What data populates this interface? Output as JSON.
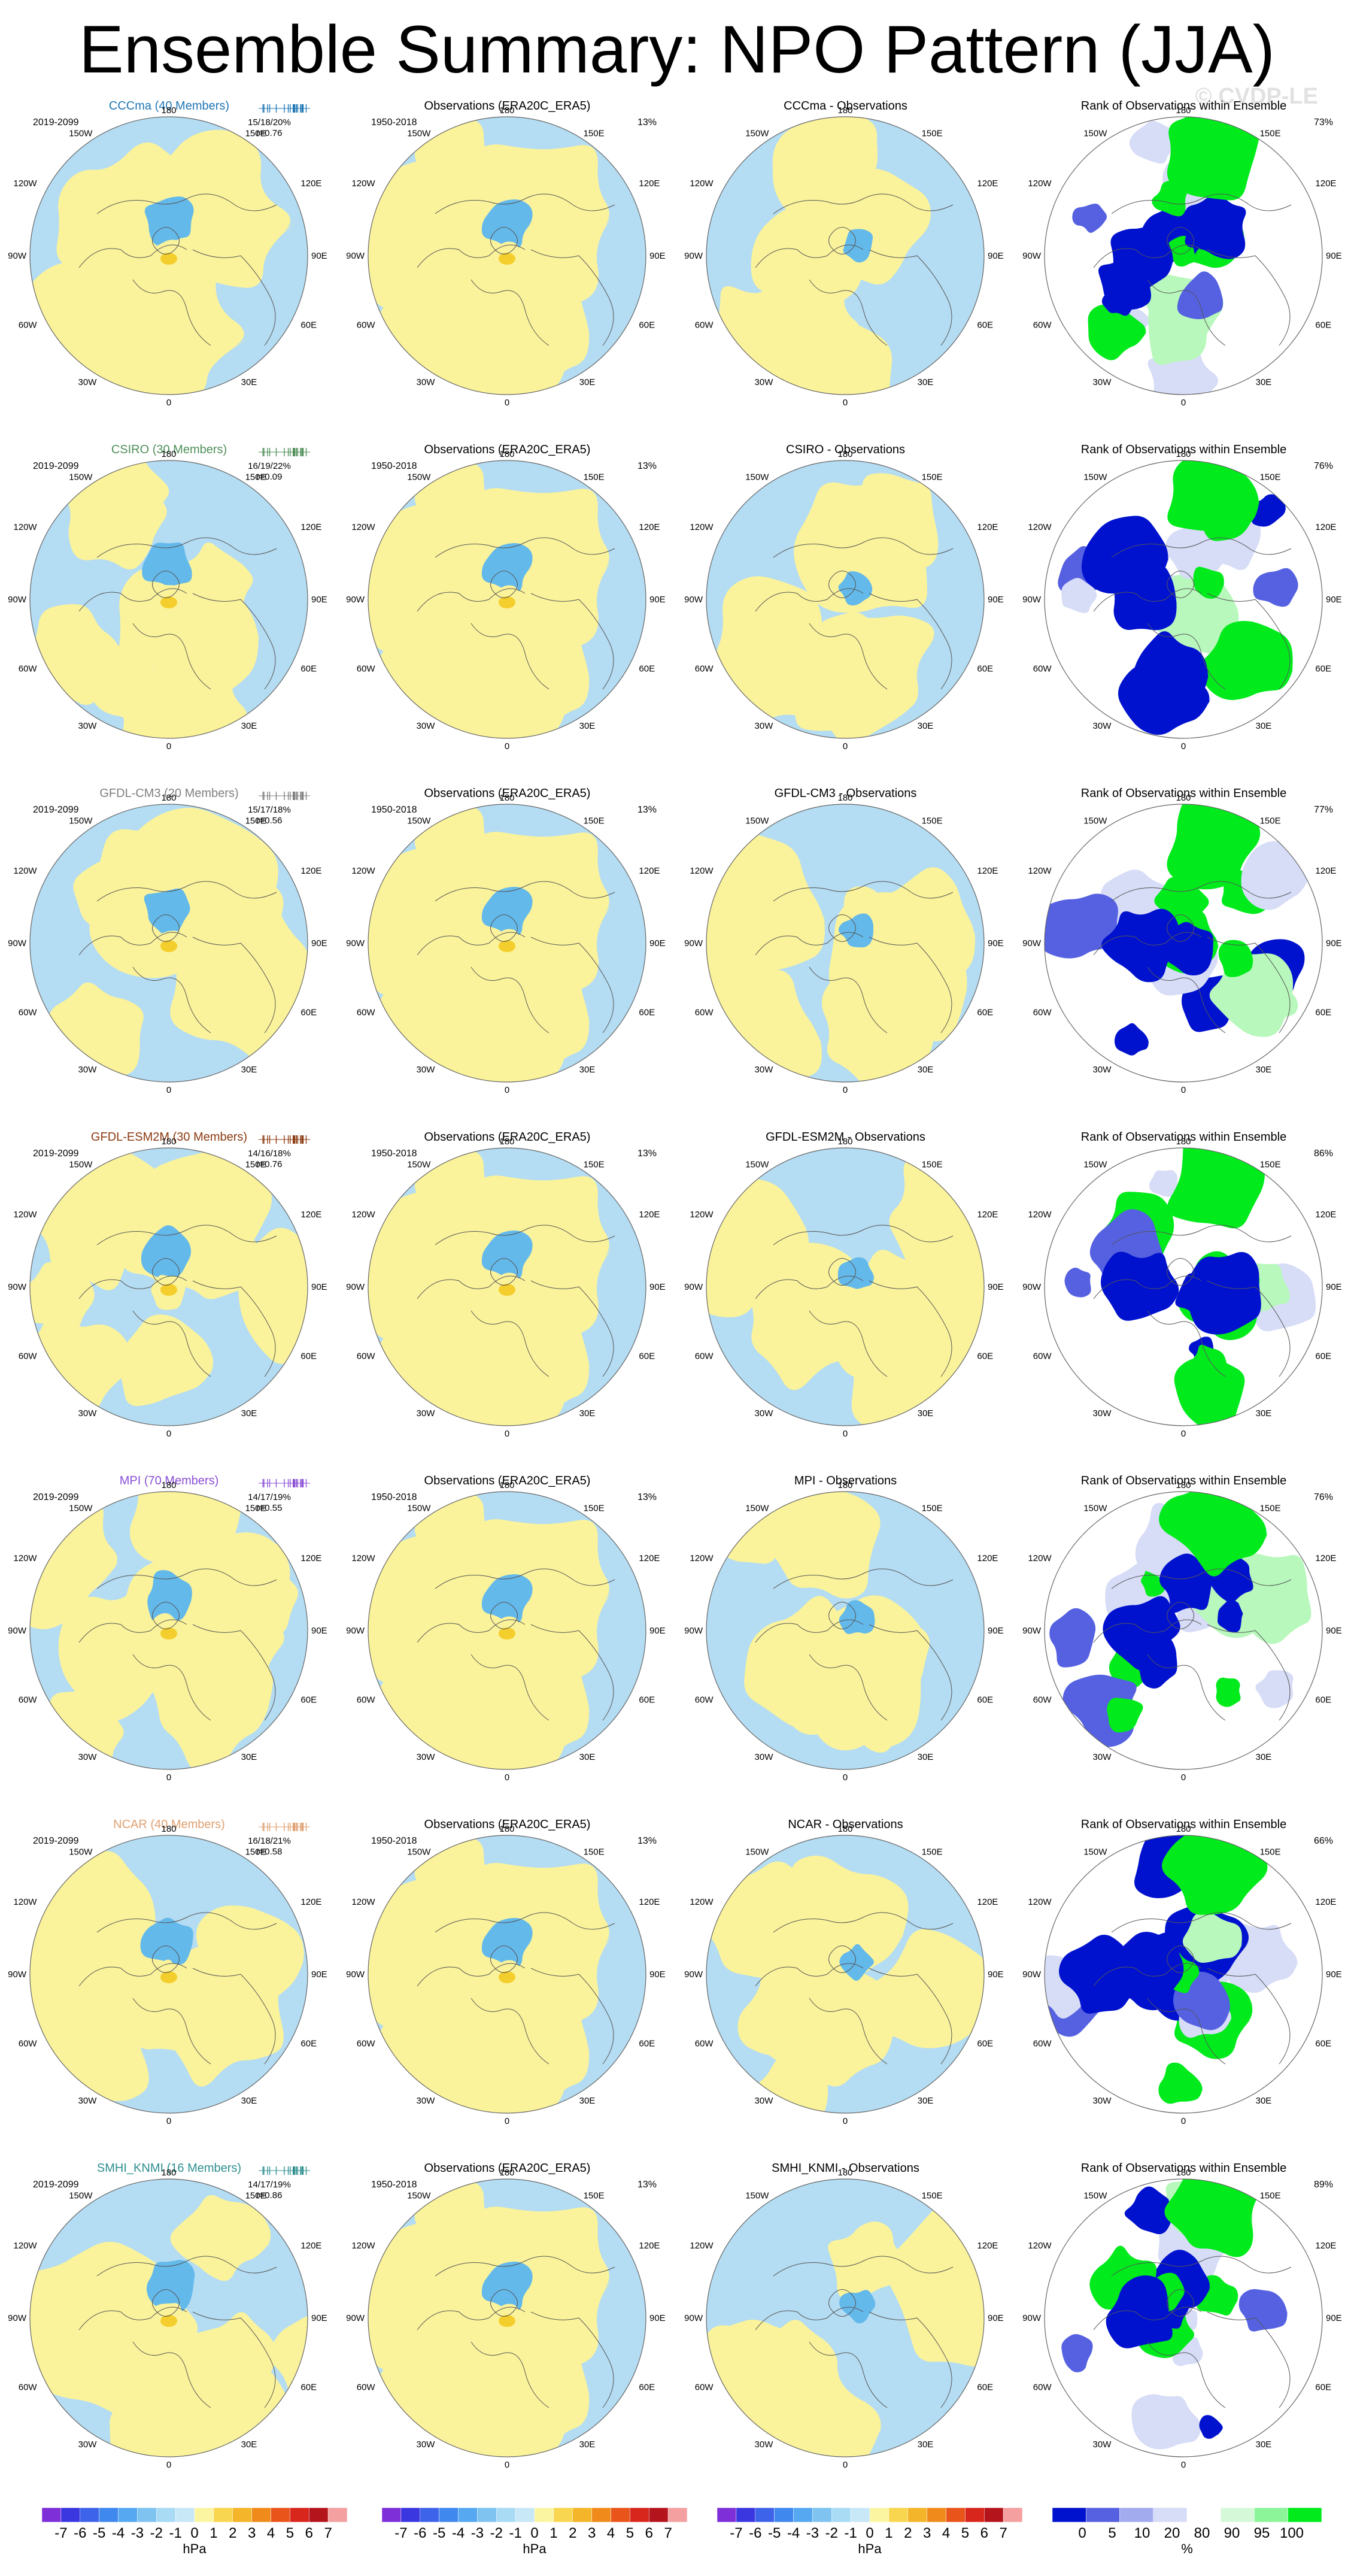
{
  "title": "Ensemble Summary: NPO Pattern (JJA)",
  "watermark": "© CVDP-LE",
  "colors": {
    "yellow": "#fbf39b",
    "blue": "#b4dcf2",
    "blue_mid": "#64b9eb",
    "orange": "#f4ce2c",
    "orange_dark": "#e8a41a",
    "rank_green": "#00ea1c",
    "rank_lgreen": "#b8f8bc",
    "rank_blue": "#0012ce",
    "rank_mblue": "#5561e1",
    "rank_lblue": "#d7dcf7"
  },
  "labels": {
    "obs_title": "Observations (ERA20C_ERA5)",
    "obs_period": "1950-2018",
    "obs_pct": "13%",
    "model_period": "2019-2099",
    "rank_title": "Rank of Observations within Ensemble",
    "lon": {
      "top": "180",
      "bottom": "0",
      "l1": "150W",
      "l2": "120W",
      "l3": "90W",
      "l4": "60W",
      "l5": "30W",
      "r1": "150E",
      "r2": "120E",
      "r3": "90E",
      "r4": "60E",
      "r5": "30E"
    }
  },
  "rows": [
    {
      "model": "CCCma (40 Members)",
      "model_color": "#1f77b4",
      "stats_line1": "15/18/20%",
      "stats_line2": "r=0.76",
      "diff_title": "CCCma - Observations",
      "rank_pct": "73%"
    },
    {
      "model": "CSIRO (30 Members)",
      "model_color": "#4f8f5a",
      "stats_line1": "16/19/22%",
      "stats_line2": "r=0.09",
      "diff_title": "CSIRO - Observations",
      "rank_pct": "76%"
    },
    {
      "model": "GFDL-CM3 (20 Members)",
      "model_color": "#7f7f7f",
      "stats_line1": "15/17/18%",
      "stats_line2": "r=0.56",
      "diff_title": "GFDL-CM3 - Observations",
      "rank_pct": "77%"
    },
    {
      "model": "GFDL-ESM2M (30 Members)",
      "model_color": "#8b3a10",
      "stats_line1": "14/16/18%",
      "stats_line2": "r=0.76",
      "diff_title": "GFDL-ESM2M - Observations",
      "rank_pct": "86%"
    },
    {
      "model": "MPI (70 Members)",
      "model_color": "#8a4fd6",
      "stats_line1": "14/17/19%",
      "stats_line2": "r=0.55",
      "diff_title": "MPI - Observations",
      "rank_pct": "76%"
    },
    {
      "model": "NCAR (40 Members)",
      "model_color": "#e0a070",
      "stats_line1": "16/18/21%",
      "stats_line2": "r=0.58",
      "diff_title": "NCAR - Observations",
      "rank_pct": "66%"
    },
    {
      "model": "SMHI_KNMI (16 Members)",
      "model_color": "#2f8f8f",
      "stats_line1": "14/17/19%",
      "stats_line2": "r=0.86",
      "diff_title": "SMHI_KNMI - Observations",
      "rank_pct": "89%"
    }
  ],
  "colorbar_hpa": {
    "unit": "hPa",
    "ticks": [
      "-7",
      "-6",
      "-5",
      "-4",
      "-3",
      "-2",
      "-1",
      "0",
      "1",
      "2",
      "3",
      "4",
      "5",
      "6",
      "7"
    ],
    "colors": [
      "#7f2fd8",
      "#3a36e0",
      "#3d63ea",
      "#3f88ee",
      "#56a8f0",
      "#7fc4f0",
      "#a9dbf5",
      "#c8e8f7",
      "#fbf5a2",
      "#f9d650",
      "#f4b52a",
      "#f08b1b",
      "#e8541a",
      "#d8261c",
      "#b4141c",
      "#f4a0a0"
    ]
  },
  "colorbar_rank": {
    "unit": "%",
    "ticks": [
      "0",
      "5",
      "10",
      "20",
      "80",
      "90",
      "95",
      "100"
    ],
    "colors": [
      "#0012ce",
      "#5561e1",
      "#a3abef",
      "#d7dcf7",
      "#ffffff",
      "#d5f8d8",
      "#8cf59a",
      "#00ea1c"
    ]
  }
}
